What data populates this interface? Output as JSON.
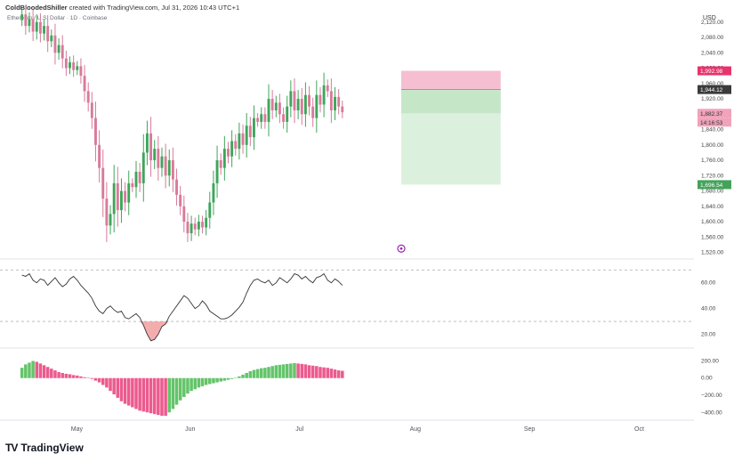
{
  "header": {
    "author": "ColdBloodedShiller",
    "created_text": "created with TradingView.com, Jul 31, 2026 10:43 UTC+1"
  },
  "symbol_label": "Ethereum / U.S. Dollar · 1D · Coinbase",
  "currency": "USD",
  "logo_text": "TradingView",
  "colors": {
    "up": "#3fa55a",
    "down": "#d97a9b",
    "rsi_line": "#333333",
    "rsi_oversold_fill": "#f08a8a",
    "hist_pos_bright": "#ec5b8e",
    "hist_pos_fade": "#f3a9c3",
    "hist_neg_bright": "#ec5b8e",
    "hist_green": "#64c46a",
    "position_stop_fill": "#f5b8cc",
    "position_target_fill": "#d8f0d9",
    "label_dark": "#3b3b3b",
    "label_pink": "#e8336d",
    "label_pink_light": "#f0a3bb",
    "label_green": "#43a35a",
    "purple_marker": "#9c27b0"
  },
  "chart_data": [
    {
      "type": "candlestick",
      "title": "Ethereum / U.S. Dollar · 1D · Coinbase",
      "ylabel": "USD",
      "ylim": [
        1505,
        2145
      ],
      "y_ticks": [
        1520,
        1560,
        1600,
        1640,
        1680,
        1720,
        1760,
        1800,
        1840,
        1880,
        1920,
        1960,
        2000,
        2040,
        2080,
        2120
      ],
      "y_tick_labels": [
        "1,520.00",
        "1,560.00",
        "1,600.00",
        "1,640.00",
        "1,680.00",
        "1,720.00",
        "1,760.00",
        "1,800.00",
        "1,840.00",
        "1,880.00",
        "1,920.00",
        "1,960.00",
        "2,000.00",
        "2,040.00",
        "2,080.00",
        "2,120.00"
      ],
      "x_labels": [
        "May",
        "Jun",
        "Jul",
        "Aug",
        "Sep",
        "Oct"
      ],
      "x_label_days": [
        1,
        32,
        62,
        93,
        124,
        154
      ],
      "x_range_days": [
        -19,
        168
      ],
      "grid": false,
      "candles_open_close": [
        [
          2125,
          2140
        ],
        [
          2140,
          2110
        ],
        [
          2110,
          2128
        ],
        [
          2128,
          2095
        ],
        [
          2095,
          2120
        ],
        [
          2120,
          2090
        ],
        [
          2090,
          2110
        ],
        [
          2110,
          2070
        ],
        [
          2070,
          2085
        ],
        [
          2085,
          2040
        ],
        [
          2040,
          2060
        ],
        [
          2060,
          2025
        ],
        [
          2025,
          2000
        ],
        [
          2000,
          2015
        ],
        [
          2015,
          1995
        ],
        [
          1995,
          2005
        ],
        [
          2005,
          1980
        ],
        [
          1980,
          1940
        ],
        [
          1940,
          1910
        ],
        [
          1910,
          1870
        ],
        [
          1870,
          1800
        ],
        [
          1800,
          1740
        ],
        [
          1740,
          1660
        ],
        [
          1660,
          1590
        ],
        [
          1590,
          1620
        ],
        [
          1620,
          1700
        ],
        [
          1700,
          1630
        ],
        [
          1630,
          1680
        ],
        [
          1680,
          1650
        ],
        [
          1650,
          1700
        ],
        [
          1700,
          1690
        ],
        [
          1690,
          1730
        ],
        [
          1730,
          1700
        ],
        [
          1700,
          1780
        ],
        [
          1780,
          1830
        ],
        [
          1830,
          1760
        ],
        [
          1760,
          1790
        ],
        [
          1790,
          1740
        ],
        [
          1740,
          1770
        ],
        [
          1770,
          1720
        ],
        [
          1720,
          1760
        ],
        [
          1760,
          1710
        ],
        [
          1710,
          1670
        ],
        [
          1670,
          1640
        ],
        [
          1640,
          1600
        ],
        [
          1600,
          1570
        ],
        [
          1570,
          1595
        ],
        [
          1595,
          1580
        ],
        [
          1580,
          1600
        ],
        [
          1600,
          1585
        ],
        [
          1585,
          1610
        ],
        [
          1610,
          1650
        ],
        [
          1650,
          1700
        ],
        [
          1700,
          1760
        ],
        [
          1760,
          1740
        ],
        [
          1740,
          1790
        ],
        [
          1790,
          1770
        ],
        [
          1770,
          1810
        ],
        [
          1810,
          1790
        ],
        [
          1790,
          1830
        ],
        [
          1830,
          1800
        ],
        [
          1800,
          1850
        ],
        [
          1850,
          1820
        ],
        [
          1820,
          1870
        ],
        [
          1870,
          1860
        ],
        [
          1860,
          1880
        ],
        [
          1880,
          1860
        ],
        [
          1860,
          1920
        ],
        [
          1920,
          1890
        ],
        [
          1890,
          1910
        ],
        [
          1910,
          1880
        ],
        [
          1880,
          1860
        ],
        [
          1860,
          1900
        ],
        [
          1900,
          1940
        ],
        [
          1940,
          1890
        ],
        [
          1890,
          1920
        ],
        [
          1920,
          1880
        ],
        [
          1880,
          1930
        ],
        [
          1930,
          1900
        ],
        [
          1900,
          1870
        ],
        [
          1870,
          1930
        ],
        [
          1930,
          1905
        ],
        [
          1905,
          1955
        ],
        [
          1955,
          1940
        ],
        [
          1940,
          1890
        ],
        [
          1890,
          1925
        ],
        [
          1925,
          1900
        ],
        [
          1900,
          1885
        ]
      ],
      "position": {
        "entry": 1944.12,
        "stop": 1992.98,
        "target": 1696.54,
        "entry_label": "1,944.12",
        "stop_label": "1,992.98",
        "target_label": "1,696.54",
        "current_label": "1,882.37",
        "countdown_label": "14:16:53",
        "current_value": 1882.37,
        "start_day": 89,
        "end_day": 116
      }
    },
    {
      "type": "line",
      "name_hidden": true,
      "ylim": [
        10,
        75
      ],
      "y_ticks": [
        20,
        40,
        60
      ],
      "y_tick_labels": [
        "20.00",
        "40.00",
        "60.00"
      ],
      "bands": [
        70,
        30
      ],
      "values": [
        66,
        65,
        67,
        62,
        60,
        63,
        62,
        58,
        61,
        64,
        60,
        57,
        59,
        63,
        65,
        62,
        58,
        55,
        52,
        48,
        42,
        38,
        36,
        40,
        42,
        39,
        37,
        38,
        33,
        32,
        34,
        36,
        33,
        27,
        20,
        15,
        16,
        20,
        26,
        28,
        34,
        38,
        42,
        46,
        50,
        48,
        44,
        40,
        42,
        46,
        43,
        38,
        36,
        34,
        32,
        32,
        33,
        35,
        38,
        41,
        45,
        52,
        58,
        62,
        63,
        61,
        60,
        62,
        58,
        60,
        64,
        62,
        60,
        63,
        67,
        66,
        63,
        65,
        62,
        60,
        64,
        65,
        67,
        62,
        60,
        63,
        61,
        58
      ]
    },
    {
      "type": "bar",
      "ylim": [
        -470,
        340
      ],
      "y_ticks": [
        200,
        0,
        -200,
        -400
      ],
      "y_tick_labels": [
        "200.00",
        "0.00",
        "−200.00",
        "−400.00"
      ],
      "values": [
        120,
        160,
        180,
        200,
        190,
        170,
        150,
        130,
        110,
        90,
        70,
        60,
        50,
        45,
        35,
        30,
        20,
        10,
        5,
        -10,
        -30,
        -50,
        -80,
        -110,
        -150,
        -190,
        -230,
        -270,
        -300,
        -320,
        -340,
        -360,
        -380,
        -390,
        -400,
        -410,
        -420,
        -430,
        -440,
        -440,
        -400,
        -360,
        -310,
        -260,
        -220,
        -180,
        -150,
        -130,
        -110,
        -95,
        -80,
        -70,
        -60,
        -50,
        -40,
        -30,
        -20,
        -10,
        5,
        20,
        40,
        60,
        80,
        95,
        105,
        115,
        120,
        130,
        140,
        150,
        155,
        160,
        165,
        170,
        175,
        170,
        165,
        160,
        150,
        145,
        140,
        130,
        125,
        120,
        110,
        100,
        90,
        85
      ]
    }
  ]
}
